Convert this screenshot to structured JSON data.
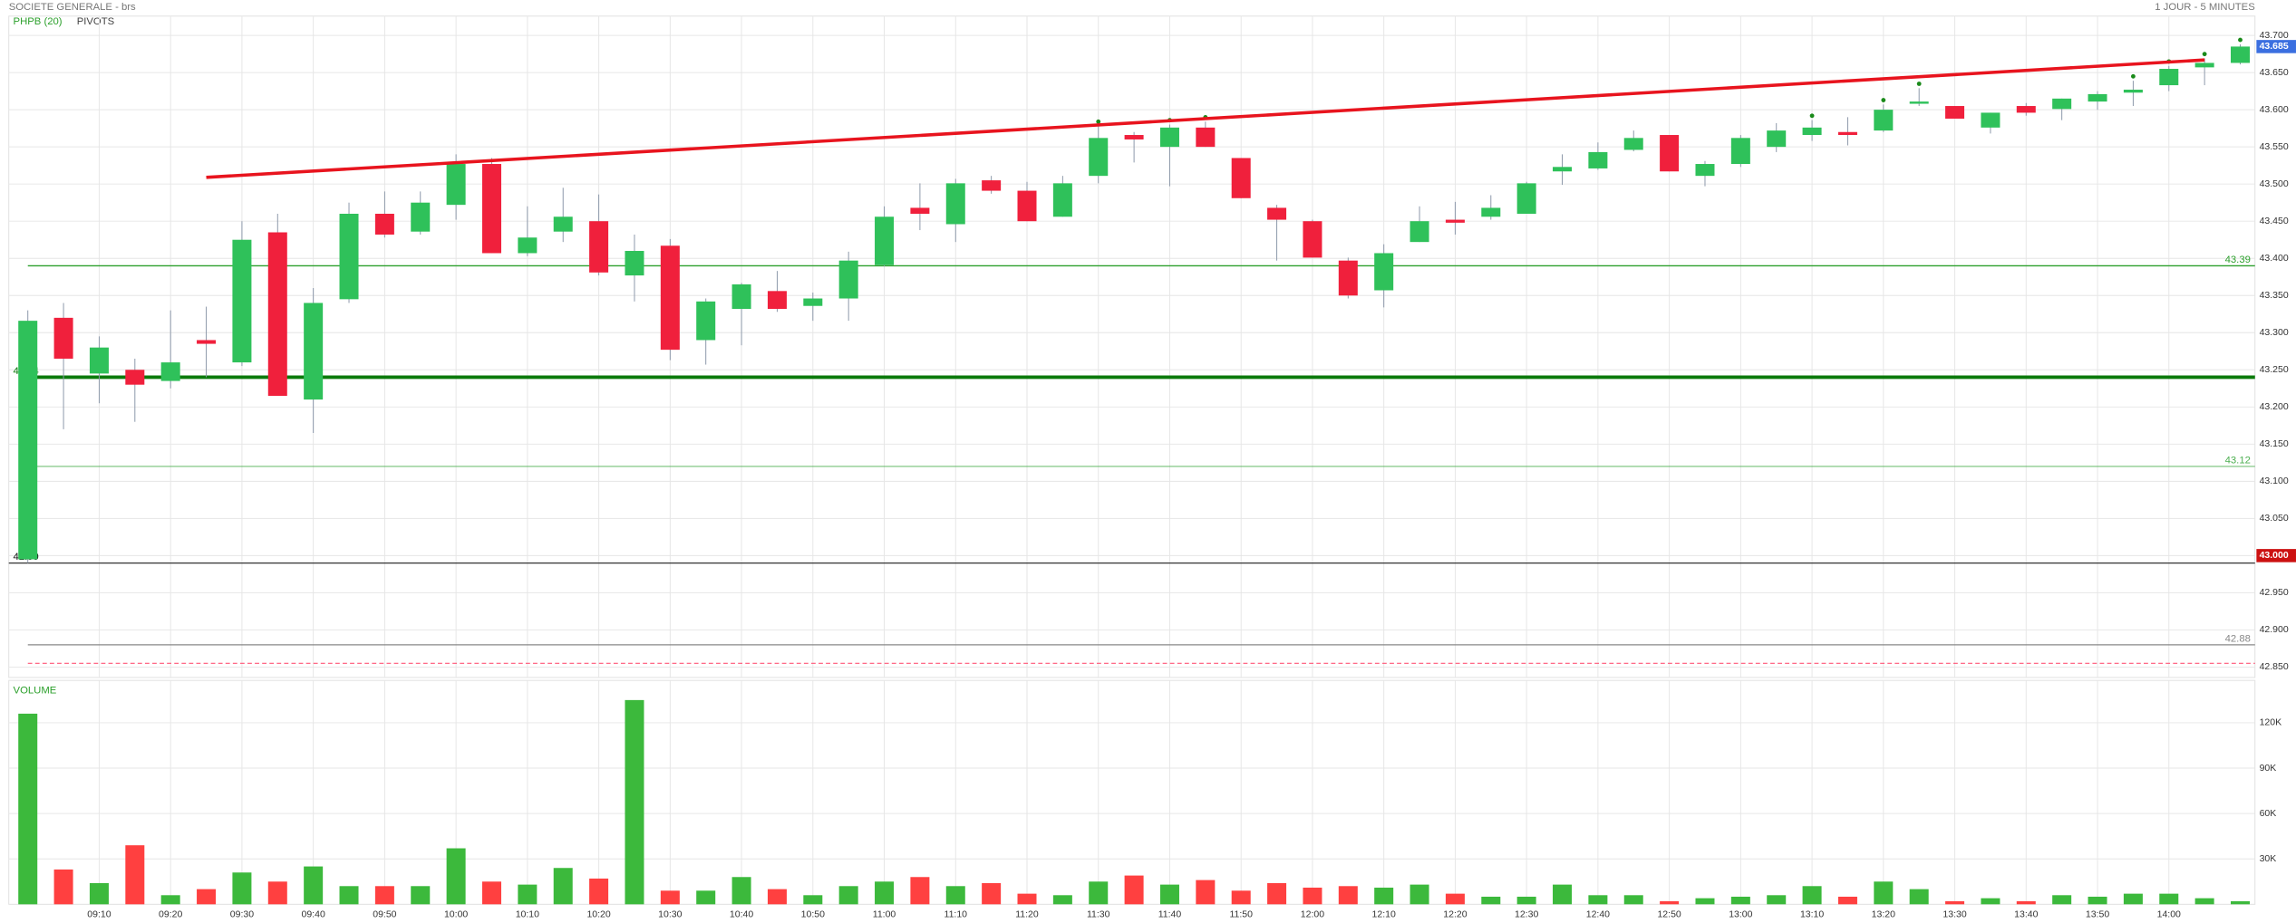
{
  "chart_data": {
    "type": "candlestick",
    "title": "SOCIETE GENERALE - brs",
    "subtitle": "1 JOUR - 5 MINUTES",
    "indicators": [
      {
        "name": "PHPB (20)",
        "color": "#2ca02c"
      },
      {
        "name": "PIVOTS",
        "color": "#444444"
      }
    ],
    "categories": [
      null,
      null,
      "09:10",
      null,
      "09:20",
      null,
      "09:30",
      null,
      "09:40",
      null,
      "09:50",
      null,
      "10:00",
      null,
      "10:10",
      null,
      "10:20",
      null,
      "10:30",
      null,
      "10:40",
      null,
      "10:50",
      null,
      "11:00",
      null,
      "11:10",
      null,
      "11:20",
      null,
      "11:30",
      null,
      "11:40",
      null,
      "11:50",
      null,
      "12:00",
      null,
      "12:10",
      null,
      "12:20",
      null,
      "12:30",
      null,
      "12:40",
      null,
      "12:50",
      null,
      "13:00",
      null,
      "13:10",
      null,
      "13:20",
      null,
      "13:30",
      null,
      "13:40",
      null,
      "13:50",
      null,
      "14:00",
      null,
      null
    ],
    "open": [
      42.995,
      43.32,
      43.245,
      43.25,
      43.235,
      43.29,
      43.26,
      43.435,
      43.21,
      43.345,
      43.46,
      43.436,
      43.472,
      43.527,
      43.407,
      43.436,
      43.45,
      43.377,
      43.417,
      43.29,
      43.332,
      43.356,
      43.336,
      43.346,
      43.391,
      43.468,
      43.446,
      43.505,
      43.491,
      43.456,
      43.511,
      43.566,
      43.55,
      43.576,
      43.535,
      43.468,
      43.45,
      43.397,
      43.357,
      43.422,
      43.452,
      43.456,
      43.46,
      43.517,
      43.521,
      43.546,
      43.566,
      43.511,
      43.527,
      43.55,
      43.566,
      43.57,
      43.572,
      43.61,
      43.605,
      43.576,
      43.605,
      43.601,
      43.611,
      43.623,
      43.633,
      43.657,
      43.663
    ],
    "high": [
      43.33,
      43.34,
      43.295,
      43.265,
      43.33,
      43.335,
      43.45,
      43.46,
      43.36,
      43.475,
      43.49,
      43.49,
      43.54,
      43.535,
      43.47,
      43.495,
      43.486,
      43.432,
      43.426,
      43.346,
      43.367,
      43.383,
      43.354,
      43.409,
      43.47,
      43.501,
      43.507,
      43.511,
      43.503,
      43.511,
      43.578,
      43.57,
      43.58,
      43.584,
      43.535,
      43.472,
      43.452,
      43.401,
      43.419,
      43.47,
      43.476,
      43.485,
      43.503,
      43.54,
      43.556,
      43.572,
      43.566,
      43.531,
      43.566,
      43.582,
      43.586,
      43.59,
      43.607,
      43.629,
      43.605,
      43.596,
      43.609,
      43.615,
      43.625,
      43.639,
      43.659,
      43.669,
      43.688
    ],
    "low": [
      42.99,
      43.17,
      43.205,
      43.18,
      43.225,
      43.24,
      43.255,
      43.215,
      43.165,
      43.34,
      43.428,
      43.432,
      43.452,
      43.407,
      43.403,
      43.422,
      43.377,
      43.342,
      43.263,
      43.257,
      43.283,
      43.328,
      43.316,
      43.316,
      43.389,
      43.438,
      43.422,
      43.487,
      43.45,
      43.456,
      43.501,
      43.529,
      43.497,
      43.55,
      43.481,
      43.397,
      43.401,
      43.346,
      43.334,
      43.422,
      43.432,
      43.452,
      43.46,
      43.499,
      43.519,
      43.544,
      43.517,
      43.497,
      43.523,
      43.543,
      43.558,
      43.552,
      43.57,
      43.605,
      43.588,
      43.568,
      43.592,
      43.586,
      43.6,
      43.605,
      43.625,
      43.633,
      43.661
    ],
    "close": [
      43.316,
      43.265,
      43.28,
      43.23,
      43.26,
      43.285,
      43.425,
      43.215,
      43.34,
      43.46,
      43.432,
      43.475,
      43.527,
      43.407,
      43.428,
      43.456,
      43.381,
      43.41,
      43.277,
      43.342,
      43.365,
      43.332,
      43.346,
      43.397,
      43.456,
      43.46,
      43.501,
      43.491,
      43.45,
      43.501,
      43.562,
      43.56,
      43.576,
      43.55,
      43.481,
      43.452,
      43.401,
      43.35,
      43.407,
      43.45,
      43.448,
      43.468,
      43.501,
      43.523,
      43.543,
      43.562,
      43.517,
      43.527,
      43.562,
      43.572,
      43.576,
      43.566,
      43.6,
      43.611,
      43.588,
      43.596,
      43.596,
      43.615,
      43.621,
      43.627,
      43.655,
      43.663,
      43.685
    ],
    "colors": {
      "up": "#2fc15a",
      "down": "#f0203c"
    },
    "ylim": [
      42.836,
      43.726
    ],
    "yticks": [
      {
        "value": 43.7,
        "label": "43.700"
      },
      {
        "value": 43.65,
        "label": "43.650"
      },
      {
        "value": 43.6,
        "label": "43.600"
      },
      {
        "value": 43.55,
        "label": "43.550"
      },
      {
        "value": 43.5,
        "label": "43.500"
      },
      {
        "value": 43.45,
        "label": "43.450"
      },
      {
        "value": 43.4,
        "label": "43.400"
      },
      {
        "value": 43.35,
        "label": "43.350"
      },
      {
        "value": 43.3,
        "label": "43.300"
      },
      {
        "value": 43.25,
        "label": "43.250"
      },
      {
        "value": 43.2,
        "label": "43.200"
      },
      {
        "value": 43.15,
        "label": "43.150"
      },
      {
        "value": 43.1,
        "label": "43.100"
      },
      {
        "value": 43.05,
        "label": "43.050"
      },
      {
        "value": 43.0,
        "label": "43.000"
      },
      {
        "value": 42.95,
        "label": "42.950"
      },
      {
        "value": 42.9,
        "label": "42.900"
      },
      {
        "value": 42.85,
        "label": "42.850"
      }
    ],
    "grid": true,
    "levels": [
      {
        "value": 43.39,
        "color": "#2ca02c",
        "width": 0.8,
        "label_side": "right"
      },
      {
        "value": 43.24,
        "color": "#0b7a0b",
        "width": 2.4,
        "label_side": "left"
      },
      {
        "value": 43.12,
        "color": "#4caf50",
        "width": 0.5,
        "label_side": "right"
      },
      {
        "value": 42.99,
        "color": "#333333",
        "width": 0.8,
        "label_side": "left"
      },
      {
        "value": 42.88,
        "color": "#888888",
        "width": 0.8,
        "label_side": "right"
      },
      {
        "value": 42.855,
        "color": "#ff5577",
        "width": 0.7,
        "dashed": true
      }
    ],
    "price_tags": [
      {
        "value": 43.685,
        "label": "43.685",
        "color": "#3b6fe0"
      },
      {
        "value": 43.0,
        "label": "43.000",
        "color": "#cc1111"
      }
    ],
    "trendline": {
      "x": [
        5,
        61
      ],
      "y": [
        43.509,
        43.667
      ],
      "color": "#e8141e"
    },
    "signals": [
      30,
      32,
      33,
      50,
      52,
      53,
      59,
      60,
      61,
      62
    ],
    "volume": {
      "title": "VOLUME",
      "values": [
        126000,
        23000,
        14000,
        39000,
        6000,
        10000,
        21000,
        15000,
        25000,
        12000,
        12000,
        12000,
        37000,
        15000,
        13000,
        24000,
        17000,
        135000,
        9000,
        9000,
        18000,
        10000,
        6000,
        12000,
        15000,
        18000,
        12000,
        14000,
        7000,
        6000,
        15000,
        19000,
        13000,
        16000,
        9000,
        14000,
        11000,
        12000,
        11000,
        13000,
        7000,
        5000,
        5000,
        13000,
        6000,
        6000,
        2000,
        4000,
        5000,
        6000,
        12000,
        5000,
        15000,
        10000,
        2000,
        4000,
        2000,
        6000,
        5000,
        7000,
        7000,
        4000,
        2000
      ],
      "colors": {
        "up": "#3cb93c",
        "down": "#ff4040"
      },
      "ylim": [
        0,
        148000
      ],
      "yticks": [
        {
          "value": 30000,
          "label": "30K"
        },
        {
          "value": 60000,
          "label": "60K"
        },
        {
          "value": 90000,
          "label": "90K"
        },
        {
          "value": 120000,
          "label": "120K"
        }
      ]
    }
  }
}
